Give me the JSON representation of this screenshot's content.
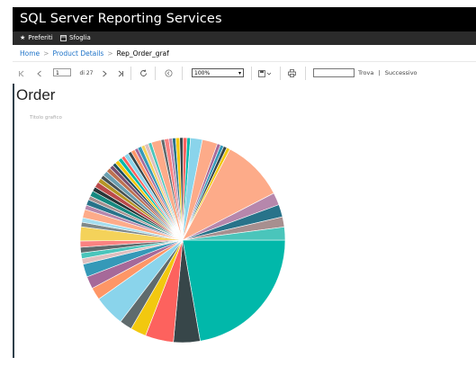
{
  "app": {
    "title": "SQL Server Reporting Services"
  },
  "menu": {
    "favorites": "Preferiti",
    "browse": "Sfoglia"
  },
  "breadcrumb": {
    "home": "Home",
    "folder": "Product Details",
    "current": "Rep_Order_graf"
  },
  "toolbar": {
    "page_value": "1",
    "page_of": "di 27",
    "zoom_value": "100%",
    "find_placeholder": "",
    "find_label": "Trova",
    "separator": "|",
    "next_label": "Successivo"
  },
  "report": {
    "title": "Order",
    "chart_title": "Titolo grafico"
  },
  "icons": [
    "star-icon",
    "browse-icon",
    "first-page-icon",
    "prev-page-icon",
    "next-page-icon",
    "last-page-icon",
    "refresh-icon",
    "back-icon",
    "export-icon",
    "print-icon"
  ],
  "chart_data": {
    "type": "pie",
    "title": "Titolo grafico",
    "legend": "none",
    "slices": [
      {
        "value": 25.0,
        "color": "#01b8aa"
      },
      {
        "value": 4.7,
        "color": "#374649"
      },
      {
        "value": 5.0,
        "color": "#fd625e"
      },
      {
        "value": 2.8,
        "color": "#f2c80f"
      },
      {
        "value": 2.2,
        "color": "#5f6b6d"
      },
      {
        "value": 5.5,
        "color": "#8ad4eb"
      },
      {
        "value": 2.2,
        "color": "#fe9666"
      },
      {
        "value": 2.2,
        "color": "#a66999"
      },
      {
        "value": 2.3,
        "color": "#3599b8"
      },
      {
        "value": 1.0,
        "color": "#dfbfbf"
      },
      {
        "value": 1.0,
        "color": "#4ac5bb"
      },
      {
        "value": 1.0,
        "color": "#5f6b6d"
      },
      {
        "value": 1.1,
        "color": "#fb8281"
      },
      {
        "value": 2.5,
        "color": "#f4d25a"
      },
      {
        "value": 0.8,
        "color": "#7f898a"
      },
      {
        "value": 0.8,
        "color": "#a4ddee"
      },
      {
        "value": 1.5,
        "color": "#fdab89"
      },
      {
        "value": 0.8,
        "color": "#b687ac"
      },
      {
        "value": 1.0,
        "color": "#28738a"
      },
      {
        "value": 0.7,
        "color": "#a78f8f"
      },
      {
        "value": 1.0,
        "color": "#168980"
      },
      {
        "value": 0.8,
        "color": "#293537"
      },
      {
        "value": 1.0,
        "color": "#bb4a4a"
      },
      {
        "value": 0.8,
        "color": "#b59525"
      },
      {
        "value": 0.7,
        "color": "#475052"
      },
      {
        "value": 0.9,
        "color": "#6a9fb0"
      },
      {
        "value": 0.8,
        "color": "#bd7150"
      },
      {
        "value": 0.7,
        "color": "#7b4f71"
      },
      {
        "value": 0.6,
        "color": "#1b4d5c"
      },
      {
        "value": 0.7,
        "color": "#f2c80f"
      },
      {
        "value": 0.7,
        "color": "#01b8aa"
      },
      {
        "value": 0.6,
        "color": "#fd625e"
      },
      {
        "value": 0.8,
        "color": "#8ad4eb"
      },
      {
        "value": 0.6,
        "color": "#374649"
      },
      {
        "value": 0.7,
        "color": "#fe9666"
      },
      {
        "value": 0.6,
        "color": "#a66999"
      },
      {
        "value": 0.7,
        "color": "#3599b8"
      },
      {
        "value": 0.6,
        "color": "#f4d25a"
      },
      {
        "value": 0.7,
        "color": "#dfbfbf"
      },
      {
        "value": 0.6,
        "color": "#4ac5bb"
      },
      {
        "value": 1.7,
        "color": "#fdab89"
      },
      {
        "value": 0.6,
        "color": "#5f6b6d"
      },
      {
        "value": 0.8,
        "color": "#fb8281"
      },
      {
        "value": 0.6,
        "color": "#b687ac"
      },
      {
        "value": 0.6,
        "color": "#28738a"
      },
      {
        "value": 0.7,
        "color": "#f2c80f"
      },
      {
        "value": 0.6,
        "color": "#374649"
      },
      {
        "value": 0.7,
        "color": "#fd625e"
      },
      {
        "value": 0.6,
        "color": "#01b8aa"
      },
      {
        "value": 2.1,
        "color": "#8ad4eb"
      },
      {
        "value": 2.7,
        "color": "#fdab89"
      },
      {
        "value": 0.6,
        "color": "#a66999"
      },
      {
        "value": 0.6,
        "color": "#3599b8"
      },
      {
        "value": 0.6,
        "color": "#374649"
      },
      {
        "value": 0.6,
        "color": "#f2c80f"
      },
      {
        "value": 11.0,
        "color": "#fdab89"
      },
      {
        "value": 2.2,
        "color": "#b687ac"
      },
      {
        "value": 2.2,
        "color": "#28738a"
      },
      {
        "value": 1.8,
        "color": "#a78f8f"
      },
      {
        "value": 2.3,
        "color": "#4ac5bb"
      }
    ]
  }
}
